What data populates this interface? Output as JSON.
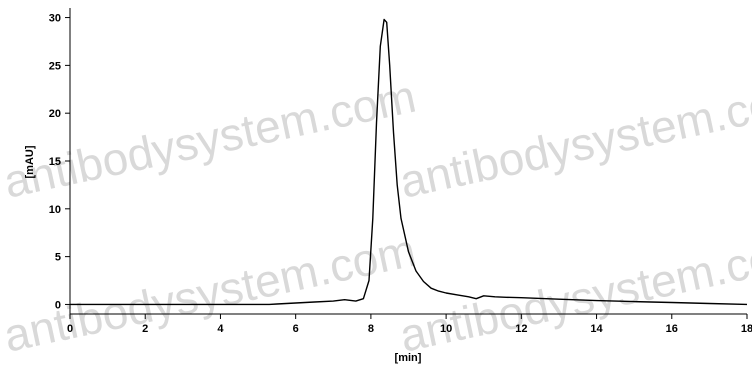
{
  "watermark": "antibodysystem.com",
  "chart_data": {
    "type": "line",
    "title": "",
    "xlabel": "[min]",
    "ylabel": "[mAU]",
    "xlim": [
      0,
      18
    ],
    "ylim": [
      -1,
      31
    ],
    "x_ticks": [
      0,
      2,
      4,
      6,
      8,
      10,
      12,
      14,
      16,
      18
    ],
    "y_ticks": [
      0,
      5,
      10,
      15,
      20,
      25,
      30
    ],
    "grid": false,
    "line_color": "#000000",
    "series": [
      {
        "name": "",
        "x": [
          0,
          1,
          2,
          3,
          4,
          5,
          5.3,
          5.5,
          6,
          6.5,
          7,
          7.3,
          7.6,
          7.8,
          7.95,
          8.05,
          8.15,
          8.25,
          8.35,
          8.42,
          8.5,
          8.6,
          8.7,
          8.8,
          9.0,
          9.2,
          9.4,
          9.6,
          9.8,
          10.0,
          10.3,
          10.6,
          10.8,
          11.0,
          11.3,
          11.6,
          12,
          13,
          14,
          15,
          16,
          17,
          18
        ],
        "y": [
          0,
          0,
          0,
          0,
          0,
          0,
          0,
          0.05,
          0.15,
          0.25,
          0.35,
          0.5,
          0.35,
          0.6,
          2.5,
          9,
          19,
          27,
          29.8,
          29.5,
          25,
          18,
          12.5,
          9,
          5.5,
          3.5,
          2.4,
          1.7,
          1.4,
          1.2,
          1.0,
          0.8,
          0.6,
          0.9,
          0.8,
          0.75,
          0.7,
          0.55,
          0.4,
          0.3,
          0.2,
          0.1,
          0.0
        ]
      }
    ]
  }
}
